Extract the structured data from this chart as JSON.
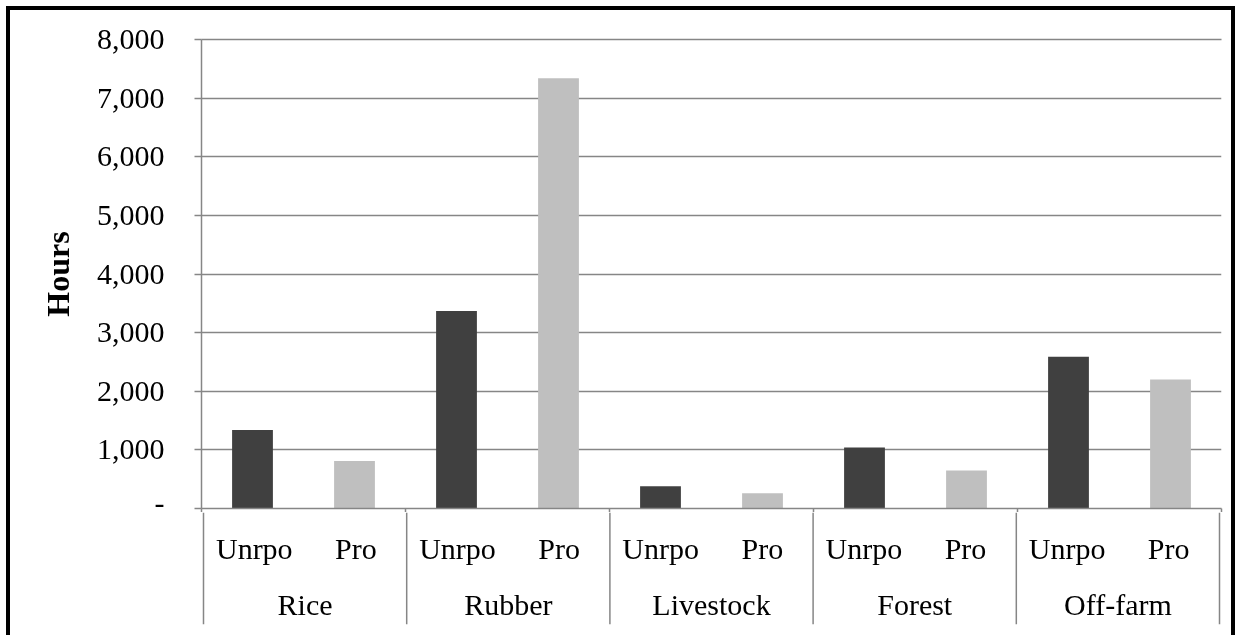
{
  "chart_data": {
    "type": "bar",
    "ylabel": "Hours",
    "categories": [
      "Rice",
      "Rubber",
      "Livestock",
      "Forest",
      "Off-farm"
    ],
    "series": [
      {
        "name": "Unrpo",
        "color": "#404040",
        "values": [
          1340,
          3370,
          380,
          1040,
          2590
        ]
      },
      {
        "name": "Pro",
        "color": "#bfbfbf",
        "values": [
          810,
          7340,
          260,
          650,
          2200
        ]
      }
    ],
    "ylim": [
      0,
      8000
    ],
    "yticks": [
      {
        "value": 0,
        "label": "-"
      },
      {
        "value": 1000,
        "label": "1,000"
      },
      {
        "value": 2000,
        "label": "2,000"
      },
      {
        "value": 3000,
        "label": "3,000"
      },
      {
        "value": 4000,
        "label": "4,000"
      },
      {
        "value": 5000,
        "label": "5,000"
      },
      {
        "value": 6000,
        "label": "6,000"
      },
      {
        "value": 7000,
        "label": "7,000"
      },
      {
        "value": 8000,
        "label": "8,000"
      }
    ],
    "grid": "y"
  }
}
